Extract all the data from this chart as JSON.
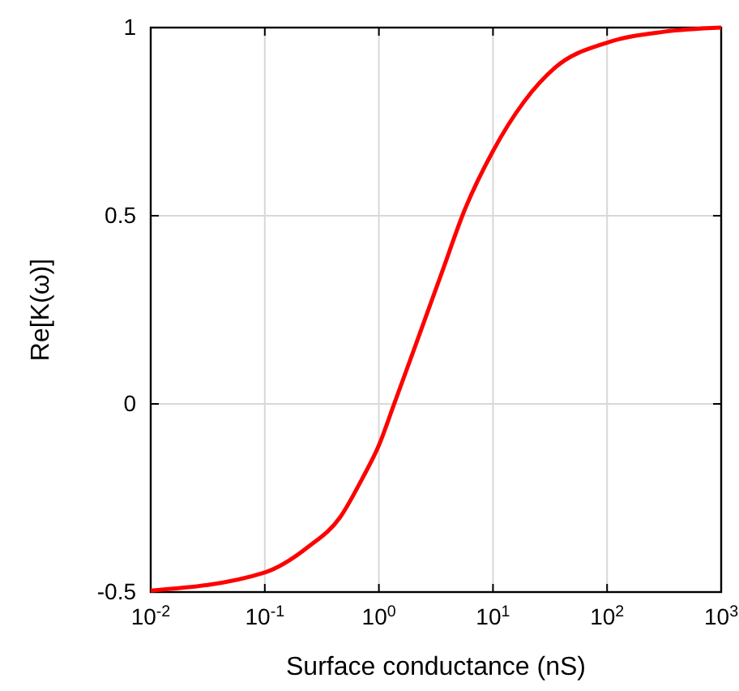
{
  "chart_data": {
    "type": "line",
    "xlabel": "Surface conductance (nS)",
    "ylabel": "Re[K(ω)]",
    "log": "x",
    "xlim": [
      0.01,
      1000
    ],
    "xticks": [
      {
        "value": 0.01,
        "label": "10$^{-2}$"
      },
      {
        "value": 0.1,
        "label": "10$^{-1}$"
      },
      {
        "value": 1,
        "label": "10$^{0}$"
      },
      {
        "value": 10,
        "label": "10$^{1}$"
      },
      {
        "value": 100,
        "label": "10$^{2}$"
      },
      {
        "value": 1000,
        "label": "10$^{3}$"
      }
    ],
    "ylim": [
      -0.5,
      1
    ],
    "yticks": [
      {
        "value": -0.5,
        "label": "-0.5"
      },
      {
        "value": 0,
        "label": "0"
      },
      {
        "value": 0.5,
        "label": "0.5"
      },
      {
        "value": 1,
        "label": "1"
      }
    ],
    "grid": true,
    "marker": "none",
    "line_style": "solid",
    "series": [
      {
        "color": "#ff0000",
        "x": [
          0.01,
          0.1,
          0.24,
          0.46,
          0.71,
          1,
          1.35,
          2.09,
          3.63,
          5.62,
          10,
          18.6,
          35.5,
          100,
          316,
          1000
        ],
        "values": [
          -0.496,
          -0.448,
          -0.38,
          -0.3,
          -0.2,
          -0.11,
          -0.003,
          0.155,
          0.356,
          0.514,
          0.672,
          0.802,
          0.895,
          0.96,
          0.989,
          1.0
        ]
      }
    ]
  }
}
